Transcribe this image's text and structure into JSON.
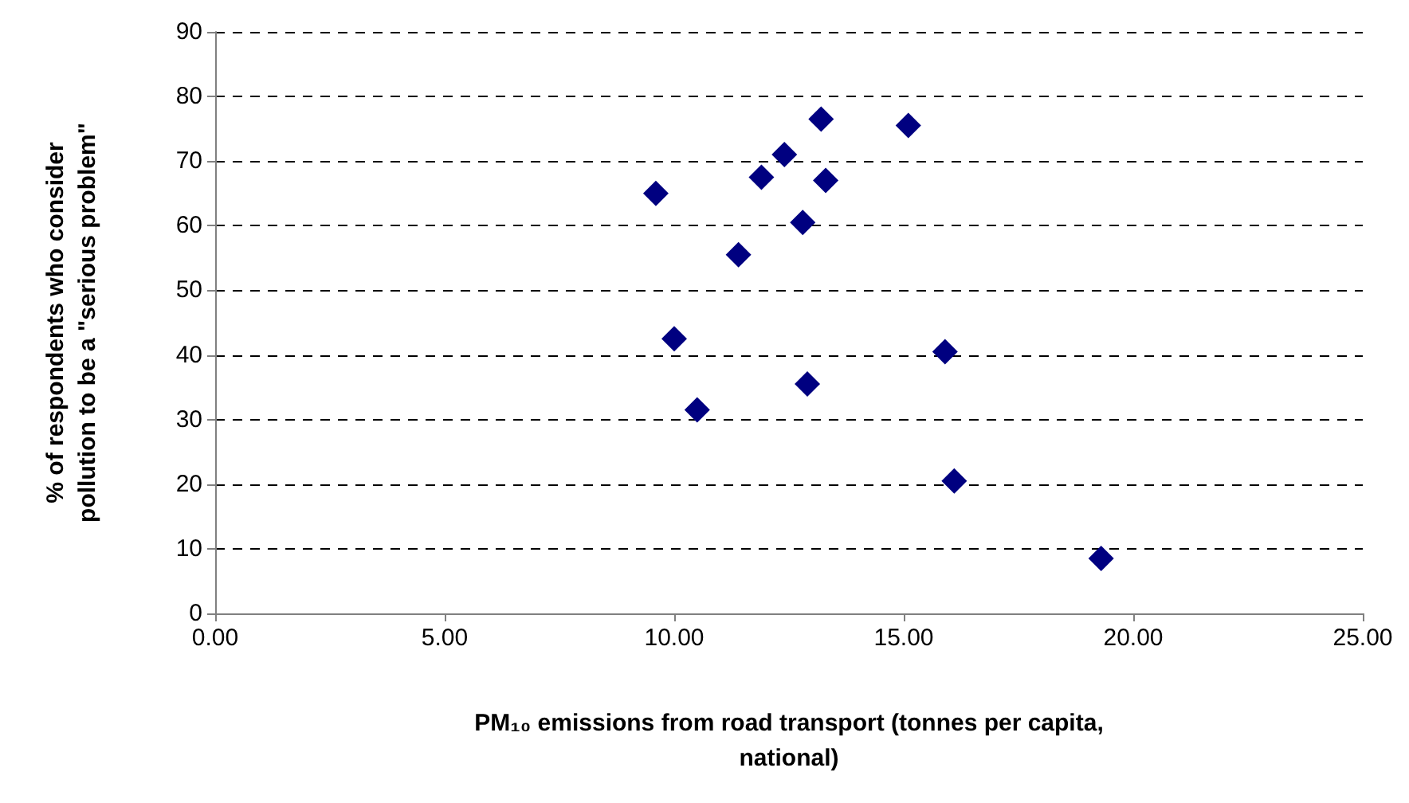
{
  "chart_data": {
    "type": "scatter",
    "xlabel": "PM₁₀ emissions from road transport (tonnes per capita, national)",
    "ylabel": "% of respondents who consider pollution to be a \"serious problem\"",
    "series": [
      {
        "color": "#000080",
        "x": [
          9.6,
          11.9,
          12.4,
          13.3,
          12.8,
          11.4,
          10.0,
          10.5,
          12.9,
          15.9,
          16.1,
          19.3,
          13.2,
          15.1
        ],
        "values": [
          65,
          67.5,
          71,
          67,
          60.5,
          55.5,
          42.5,
          31.5,
          35.5,
          40.5,
          20.5,
          8.5,
          76.5,
          75.5
        ]
      }
    ],
    "xlim": [
      0,
      25
    ],
    "xticks": [
      {
        "value": 0,
        "label": "0.00"
      },
      {
        "value": 5,
        "label": "5.00"
      },
      {
        "value": 10,
        "label": "10.00"
      },
      {
        "value": 15,
        "label": "15.00"
      },
      {
        "value": 20,
        "label": "20.00"
      },
      {
        "value": 25,
        "label": "25.00"
      }
    ],
    "ylim": [
      0,
      90
    ],
    "yticks": [
      0,
      10,
      20,
      30,
      40,
      50,
      60,
      70,
      80,
      90
    ],
    "grid": "y",
    "marker": "diamond"
  }
}
